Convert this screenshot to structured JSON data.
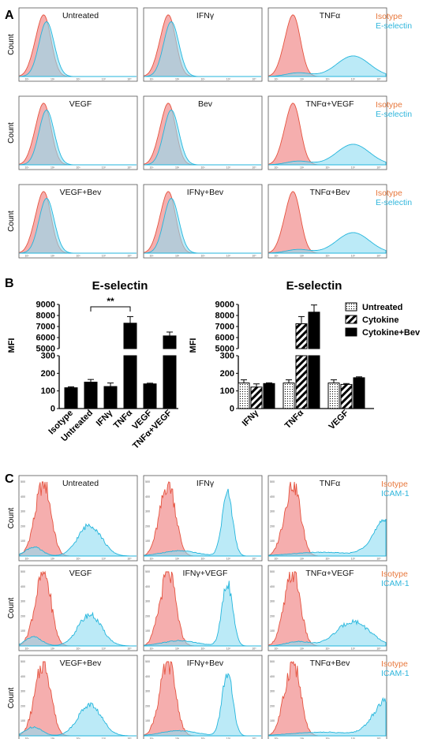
{
  "panel_labels": {
    "A": "A",
    "B": "B",
    "C": "C"
  },
  "colors": {
    "isotype": "#f07f62",
    "marker": "#3fc1e4",
    "isotype_fill": "#f3a0a0",
    "marker_fill": "#8ddcf2"
  },
  "count_label": "Count",
  "legend_isotype": "Isotype",
  "legend_eselectin": "E-selectin",
  "legend_icam": "ICAM-1",
  "histo_tick_labels": [
    "10¹",
    "10²",
    "10³",
    "10⁴",
    "10⁵"
  ],
  "histo_y_ticks_c": [
    "100",
    "200",
    "300",
    "400",
    "500"
  ],
  "chart_data": [
    {
      "type": "histogram-grid",
      "panel": "A",
      "marker": "E-selectin",
      "panels": [
        {
          "title": "Untreated",
          "marker_shift": "none"
        },
        {
          "title": "IFNγ",
          "marker_shift": "none"
        },
        {
          "title": "TNFα",
          "marker_shift": "high"
        },
        {
          "title": "VEGF",
          "marker_shift": "none"
        },
        {
          "title": "Bev",
          "marker_shift": "none"
        },
        {
          "title": "TNFα+VEGF",
          "marker_shift": "high"
        },
        {
          "title": "VEGF+Bev",
          "marker_shift": "none"
        },
        {
          "title": "IFNγ+Bev",
          "marker_shift": "none"
        },
        {
          "title": "TNFα+Bev",
          "marker_shift": "high"
        }
      ]
    },
    {
      "type": "bar",
      "panel": "B-left",
      "title": "E-selectin",
      "ylabel": "MFI",
      "categories": [
        "Isotype",
        "Untreated",
        "IFNγ",
        "TNFα",
        "VEGF",
        "TNFα+VEGF"
      ],
      "values": [
        118,
        150,
        125,
        7300,
        140,
        6150
      ],
      "errors": [
        5,
        15,
        20,
        600,
        4,
        350
      ],
      "y_ticks_low": [
        "0",
        "100",
        "200",
        "300"
      ],
      "y_ticks_high": [
        "5000",
        "6000",
        "7000",
        "8000",
        "9000"
      ],
      "significance": {
        "from": "Untreated",
        "to": "TNFα",
        "label": "**"
      }
    },
    {
      "type": "bar",
      "panel": "B-right",
      "title": "E-selectin",
      "ylabel": "MFI",
      "categories": [
        "IFNγ",
        "TNFα",
        "VEGF"
      ],
      "series": [
        {
          "name": "Untreated",
          "pattern": "dots",
          "values": [
            145,
            145,
            145
          ],
          "errors": [
            18,
            18,
            18
          ]
        },
        {
          "name": "Cytokine",
          "pattern": "hatch",
          "values": [
            122,
            7250,
            137
          ],
          "errors": [
            18,
            650,
            5
          ]
        },
        {
          "name": "Cytokine+Bev",
          "pattern": "solid",
          "values": [
            142,
            8300,
            175
          ],
          "errors": [
            4,
            650,
            5
          ]
        }
      ],
      "y_ticks_low": [
        "0",
        "100",
        "200",
        "300"
      ],
      "y_ticks_high": [
        "5000",
        "6000",
        "7000",
        "8000",
        "9000"
      ]
    },
    {
      "type": "histogram-grid",
      "panel": "C",
      "marker": "ICAM-1",
      "panels": [
        {
          "title": "Untreated",
          "marker_shift": "medium"
        },
        {
          "title": "IFNγ",
          "marker_shift": "sharp"
        },
        {
          "title": "TNFα",
          "marker_shift": "very-high"
        },
        {
          "title": "VEGF",
          "marker_shift": "medium"
        },
        {
          "title": "IFNγ+VEGF",
          "marker_shift": "sharp"
        },
        {
          "title": "TNFα+VEGF",
          "marker_shift": "high"
        },
        {
          "title": "VEGF+Bev",
          "marker_shift": "medium"
        },
        {
          "title": "IFNγ+Bev",
          "marker_shift": "sharp"
        },
        {
          "title": "TNFα+Bev",
          "marker_shift": "very-high"
        }
      ]
    }
  ]
}
